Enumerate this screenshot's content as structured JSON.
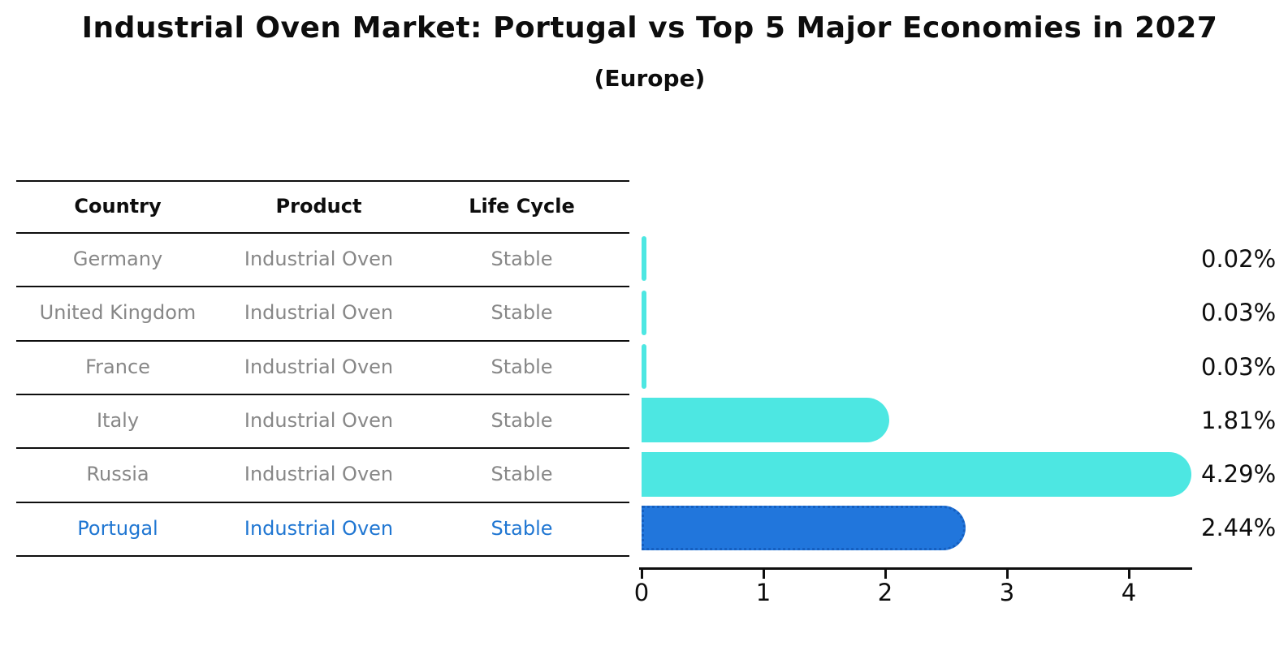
{
  "title": "Industrial Oven Market: Portugal vs Top 5 Major Economies in 2027",
  "subtitle": "(Europe)",
  "table": {
    "headers": [
      "Country",
      "Product",
      "Life Cycle"
    ],
    "rows": [
      {
        "country": "Germany",
        "product": "Industrial Oven",
        "life_cycle": "Stable",
        "highlight": false
      },
      {
        "country": "United Kingdom",
        "product": "Industrial Oven",
        "life_cycle": "Stable",
        "highlight": false
      },
      {
        "country": "France",
        "product": "Industrial Oven",
        "life_cycle": "Stable",
        "highlight": false
      },
      {
        "country": "Italy",
        "product": "Industrial Oven",
        "life_cycle": "Stable",
        "highlight": false
      },
      {
        "country": "Russia",
        "product": "Industrial Oven",
        "life_cycle": "Stable",
        "highlight": false
      },
      {
        "country": "Portugal",
        "product": "Industrial Oven",
        "life_cycle": "Stable",
        "highlight": true
      }
    ]
  },
  "chart_data": {
    "type": "bar",
    "orientation": "horizontal",
    "title": "Industrial Oven Market: Portugal vs Top 5 Major Economies in 2027",
    "subtitle": "(Europe)",
    "categories": [
      "Germany",
      "United Kingdom",
      "France",
      "Italy",
      "Russia",
      "Portugal"
    ],
    "values": [
      0.02,
      0.03,
      0.03,
      1.81,
      4.29,
      2.44
    ],
    "value_labels": [
      "0.02%",
      "0.03%",
      "0.03%",
      "1.81%",
      "4.29%",
      "2.44%"
    ],
    "x_ticks": [
      "0",
      "1",
      "2",
      "3",
      "4"
    ],
    "xlim": [
      0,
      4.6
    ],
    "grid": false,
    "legend": false,
    "bar_color": "#4DE7E2",
    "highlight_bar_color": "#2176DC",
    "highlight_index": 5
  },
  "colors": {
    "row_text": "#878787",
    "highlight_text": "#1F76D2",
    "axis": "#0E0E0E",
    "background": "#FFFFFF"
  }
}
